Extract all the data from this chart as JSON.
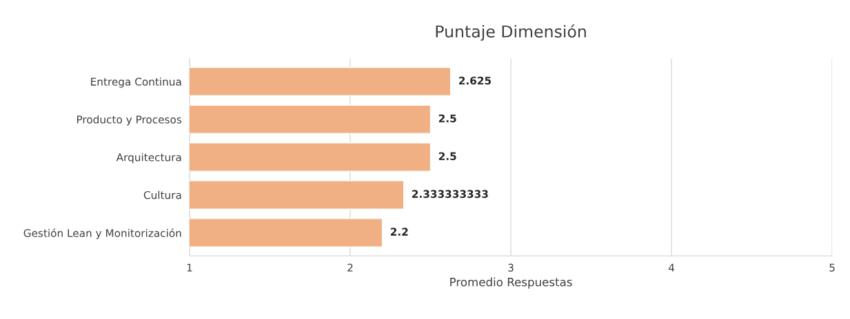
{
  "chart_data": {
    "type": "bar",
    "orientation": "horizontal",
    "title": "Puntaje Dimensión",
    "xlabel": "Promedio Respuestas",
    "categories": [
      "Entrega Continua",
      "Producto y Procesos",
      "Arquitectura",
      "Cultura",
      "Gestión Lean y Monitorización"
    ],
    "values": [
      2.625,
      2.5,
      2.5,
      2.333333333,
      2.2
    ],
    "color": "#f0b084",
    "xlim": [
      1,
      5
    ],
    "xticks": [
      1,
      2,
      3,
      4,
      5
    ],
    "grid": "x",
    "data_labels": true,
    "legend": false
  }
}
